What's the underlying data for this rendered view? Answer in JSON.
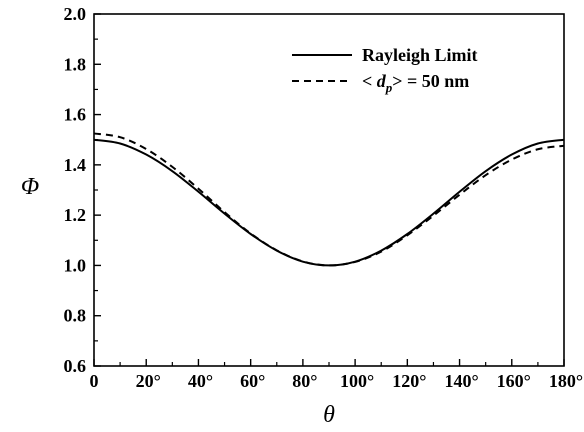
{
  "chart_data": {
    "type": "line",
    "xlabel": "θ",
    "ylabel": "Φ",
    "xlim": [
      0,
      180
    ],
    "ylim": [
      0.6,
      2.0
    ],
    "x_ticks": [
      0,
      20,
      40,
      60,
      80,
      100,
      120,
      140,
      160,
      180
    ],
    "x_tick_labels": [
      "0",
      "20°",
      "40°",
      "60°",
      "80°",
      "100°",
      "120°",
      "140°",
      "160°",
      "180°"
    ],
    "y_ticks": [
      0.6,
      0.8,
      1.0,
      1.2,
      1.4,
      1.6,
      1.8,
      2.0
    ],
    "y_tick_labels": [
      "0.6",
      "0.8",
      "1.0",
      "1.2",
      "1.4",
      "1.6",
      "1.8",
      "2.0"
    ],
    "grid": false,
    "legend_position": "top-right",
    "series": [
      {
        "name": "Rayleigh Limit",
        "style": "solid",
        "color": "#000000",
        "x": [
          0,
          10,
          20,
          30,
          40,
          50,
          60,
          70,
          80,
          90,
          100,
          110,
          120,
          130,
          140,
          150,
          160,
          170,
          180
        ],
        "y": [
          1.5,
          1.485,
          1.441,
          1.375,
          1.293,
          1.206,
          1.125,
          1.059,
          1.015,
          1.0,
          1.015,
          1.059,
          1.125,
          1.206,
          1.293,
          1.375,
          1.441,
          1.485,
          1.5
        ]
      },
      {
        "name_parts": [
          "< ",
          "d",
          "p",
          "> = 50 nm"
        ],
        "style": "dashed",
        "color": "#000000",
        "x": [
          0,
          10,
          20,
          30,
          40,
          50,
          60,
          70,
          80,
          90,
          100,
          110,
          120,
          130,
          140,
          150,
          160,
          170,
          180
        ],
        "y": [
          1.525,
          1.51,
          1.463,
          1.392,
          1.305,
          1.212,
          1.127,
          1.06,
          1.016,
          1.0,
          1.014,
          1.055,
          1.12,
          1.198,
          1.281,
          1.359,
          1.421,
          1.462,
          1.476
        ]
      }
    ],
    "y_mapping_note": ""
  }
}
